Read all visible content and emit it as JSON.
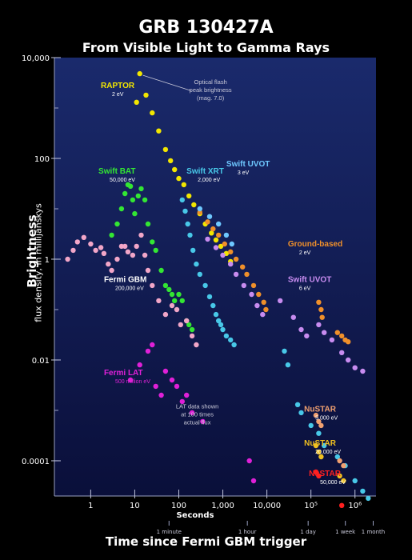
{
  "figure": {
    "title": "GRB 130427A",
    "subtitle": "From Visible Light to Gamma Rays",
    "ylabel_main": "Brightness",
    "ylabel_sub": "flux density, in millijanskys",
    "xlabel": "Time since Fermi GBM trigger",
    "x_unit_label": "Seconds",
    "bg_top": "#1a2a6c",
    "bg_bottom": "#0a0f3a"
  },
  "chart_data": {
    "type": "scatter",
    "x_scale": "log",
    "y_scale": "log",
    "xlim": [
      0.15,
      3000000
    ],
    "ylim": [
      2e-05,
      10000
    ],
    "x_ticks": [
      {
        "value": 1,
        "label": "1"
      },
      {
        "value": 10,
        "label": "10"
      },
      {
        "value": 100,
        "label": "100"
      },
      {
        "value": 1000,
        "label": "1,000"
      },
      {
        "value": 10000,
        "label": "10,000"
      },
      {
        "value": 100000,
        "label": "10⁵"
      },
      {
        "value": 1000000,
        "label": "10⁶"
      }
    ],
    "x_time_ticks": [
      {
        "value": 60,
        "label": "1 minute"
      },
      {
        "value": 3600,
        "label": "1 hour"
      },
      {
        "value": 86400,
        "label": "1 day"
      },
      {
        "value": 604800,
        "label": "1 week"
      },
      {
        "value": 2592000,
        "label": "1 month"
      }
    ],
    "y_ticks": [
      {
        "value": 10000,
        "label": "10,000"
      },
      {
        "value": 100,
        "label": "100"
      },
      {
        "value": 1,
        "label": "1"
      },
      {
        "value": 0.01,
        "label": "0.01"
      },
      {
        "value": 0.0001,
        "label": "0.0001"
      }
    ],
    "series": [
      {
        "name": "RAPTOR",
        "energy": "2 eV",
        "color": "#f2e600",
        "points": [
          [
            11,
            1300
          ],
          [
            13,
            4800
          ],
          [
            18,
            1800
          ],
          [
            25,
            800
          ],
          [
            35,
            350
          ],
          [
            50,
            150
          ],
          [
            65,
            90
          ],
          [
            80,
            60
          ],
          [
            100,
            40
          ],
          [
            130,
            30
          ],
          [
            170,
            18
          ],
          [
            220,
            12
          ],
          [
            300,
            8
          ],
          [
            400,
            5
          ],
          [
            550,
            3.3
          ],
          [
            700,
            2.4
          ],
          [
            900,
            1.8
          ],
          [
            1200,
            1.3
          ],
          [
            1500,
            0.9
          ]
        ]
      },
      {
        "name": "Ground-based",
        "energy": "2 eV",
        "color": "#f0902a",
        "points": [
          [
            300,
            8.5
          ],
          [
            450,
            5.5
          ],
          [
            600,
            4
          ],
          [
            800,
            3
          ],
          [
            1100,
            2
          ],
          [
            1500,
            1.4
          ],
          [
            2000,
            1
          ],
          [
            2800,
            0.7
          ],
          [
            3500,
            0.5
          ],
          [
            5000,
            0.3
          ],
          [
            6500,
            0.2
          ],
          [
            8500,
            0.14
          ],
          [
            9500,
            0.1
          ],
          [
            150000,
            0.14
          ],
          [
            170000,
            0.1
          ],
          [
            180000,
            0.07
          ],
          [
            400000,
            0.035
          ],
          [
            500000,
            0.03
          ],
          [
            600000,
            0.025
          ],
          [
            700000,
            0.023
          ]
        ]
      },
      {
        "name": "Swift UVOT",
        "energy": "3 eV",
        "color": "#6ec8ff",
        "points": [
          [
            300,
            10
          ],
          [
            500,
            7
          ],
          [
            800,
            5
          ],
          [
            1200,
            3
          ],
          [
            1600,
            2
          ]
        ]
      },
      {
        "name": "Swift UVOT",
        "energy": "6 eV",
        "color": "#c88cf0",
        "points": [
          [
            450,
            2.5
          ],
          [
            700,
            1.7
          ],
          [
            1000,
            1.2
          ],
          [
            1500,
            0.8
          ],
          [
            2000,
            0.5
          ],
          [
            3000,
            0.3
          ],
          [
            4500,
            0.2
          ],
          [
            6000,
            0.12
          ],
          [
            8000,
            0.08
          ],
          [
            20000,
            0.15
          ],
          [
            40000,
            0.07
          ],
          [
            60000,
            0.04
          ],
          [
            80000,
            0.03
          ],
          [
            150000,
            0.05
          ],
          [
            200000,
            0.035
          ],
          [
            300000,
            0.025
          ],
          [
            500000,
            0.014
          ],
          [
            700000,
            0.01
          ],
          [
            1000000,
            0.007
          ],
          [
            1500000,
            0.006
          ]
        ]
      },
      {
        "name": "Swift XRT",
        "energy": "2,000 eV",
        "color": "#48c8e8",
        "points": [
          [
            120,
            15
          ],
          [
            140,
            9
          ],
          [
            160,
            5
          ],
          [
            180,
            3
          ],
          [
            210,
            1.5
          ],
          [
            250,
            0.8
          ],
          [
            300,
            0.5
          ],
          [
            400,
            0.3
          ],
          [
            500,
            0.18
          ],
          [
            600,
            0.12
          ],
          [
            700,
            0.08
          ],
          [
            800,
            0.06
          ],
          [
            900,
            0.05
          ],
          [
            1000,
            0.04
          ],
          [
            1200,
            0.03
          ],
          [
            1500,
            0.025
          ],
          [
            1800,
            0.02
          ],
          [
            25000,
            0.015
          ],
          [
            30000,
            0.008
          ],
          [
            50000,
            0.0013
          ],
          [
            60000,
            0.0009
          ],
          [
            100000,
            0.0005
          ],
          [
            150000,
            0.00035
          ],
          [
            200000,
            0.0002
          ],
          [
            400000,
            0.00012
          ],
          [
            600000,
            8e-05
          ],
          [
            1000000,
            4e-05
          ],
          [
            1500000,
            2.5e-05
          ],
          [
            2000000,
            1.8e-05
          ]
        ]
      },
      {
        "name": "Swift BAT",
        "energy": "50,000 eV",
        "color": "#33e633",
        "points": [
          [
            3,
            3
          ],
          [
            4,
            5
          ],
          [
            5,
            10
          ],
          [
            6,
            20
          ],
          [
            7,
            30
          ],
          [
            8,
            28
          ],
          [
            9,
            15
          ],
          [
            10,
            8
          ],
          [
            12,
            18
          ],
          [
            14,
            25
          ],
          [
            17,
            15
          ],
          [
            20,
            5
          ],
          [
            25,
            2.2
          ],
          [
            30,
            1.5
          ],
          [
            40,
            0.6
          ],
          [
            50,
            0.3
          ],
          [
            60,
            0.25
          ],
          [
            70,
            0.2
          ],
          [
            80,
            0.15
          ],
          [
            100,
            0.2
          ],
          [
            120,
            0.15
          ],
          [
            150,
            0.06
          ],
          [
            170,
            0.05
          ],
          [
            200,
            0.04
          ]
        ]
      },
      {
        "name": "Fermi GBM",
        "energy": "200,000 eV",
        "color": "#f2a6c8",
        "points": [
          [
            0.3,
            1
          ],
          [
            0.4,
            1.5
          ],
          [
            0.5,
            2.2
          ],
          [
            0.7,
            2.7
          ],
          [
            1,
            2
          ],
          [
            1.3,
            1.5
          ],
          [
            1.7,
            1.7
          ],
          [
            2,
            1.3
          ],
          [
            2.5,
            0.8
          ],
          [
            3,
            0.6
          ],
          [
            4,
            1
          ],
          [
            5,
            1.8
          ],
          [
            6,
            1.8
          ],
          [
            7,
            1.4
          ],
          [
            9,
            1.2
          ],
          [
            11,
            1.8
          ],
          [
            14,
            3
          ],
          [
            17,
            1.2
          ],
          [
            20,
            0.6
          ],
          [
            25,
            0.3
          ],
          [
            35,
            0.15
          ],
          [
            50,
            0.08
          ],
          [
            70,
            0.12
          ],
          [
            90,
            0.1
          ],
          [
            110,
            0.05
          ],
          [
            150,
            0.06
          ],
          [
            200,
            0.03
          ],
          [
            250,
            0.02
          ]
        ]
      },
      {
        "name": "Fermi LAT",
        "energy": "500 million eV",
        "color": "#e020d8",
        "points": [
          [
            8,
            0.004
          ],
          [
            13,
            0.008
          ],
          [
            20,
            0.015
          ],
          [
            25,
            0.02
          ],
          [
            30,
            0.003
          ],
          [
            40,
            0.002
          ],
          [
            50,
            0.006
          ],
          [
            70,
            0.004
          ],
          [
            90,
            0.003
          ],
          [
            120,
            0.0015
          ],
          [
            150,
            0.002
          ],
          [
            200,
            0.0009
          ],
          [
            350,
            0.0006
          ],
          [
            4000,
            0.0001
          ],
          [
            5000,
            4e-05
          ]
        ]
      },
      {
        "name": "NuSTAR",
        "energy": "5,000 eV",
        "color": "#f0a070",
        "points": [
          [
            130000,
            0.0008
          ],
          [
            150000,
            0.0006
          ],
          [
            170000,
            0.0005
          ],
          [
            450000,
            0.0001
          ],
          [
            550000,
            8e-05
          ]
        ]
      },
      {
        "name": "NuSTAR",
        "energy": "20,000 eV",
        "color": "#f0c020",
        "points": [
          [
            130000,
            0.0002
          ],
          [
            150000,
            0.00015
          ],
          [
            170000,
            0.00012
          ],
          [
            450000,
            5e-05
          ],
          [
            550000,
            4e-05
          ]
        ]
      },
      {
        "name": "NuSTAR",
        "energy": "50,000 eV",
        "color": "#ff2020",
        "points": [
          [
            130000,
            6e-05
          ],
          [
            150000,
            5e-05
          ],
          [
            500000,
            1.3e-05
          ]
        ]
      }
    ],
    "annotations": [
      {
        "text": "RAPTOR",
        "sub": "2 eV",
        "color": "#f2e600",
        "x": 1.7,
        "y": 2500,
        "sub_color": "#ffffff"
      },
      {
        "text": "Swift BAT",
        "sub": "50,000 eV",
        "color": "#33e633",
        "x": 1.5,
        "y": 50,
        "sub_color": "#ffffff"
      },
      {
        "text": "Swift XRT",
        "sub": "2,000 eV",
        "color": "#48c8e8",
        "x": 150,
        "y": 50,
        "sub_color": "#ffffff"
      },
      {
        "text": "Swift UVOT",
        "sub": "3 eV",
        "color": "#6ec8ff",
        "x": 1200,
        "y": 70,
        "sub_color": "#ffffff"
      },
      {
        "text": "Ground-based",
        "sub": "2 eV",
        "color": "#f0902a",
        "x": 30000,
        "y": 1.8,
        "sub_color": "#ffffff"
      },
      {
        "text": "Fermi GBM",
        "sub": "200,000 eV",
        "color": "#ffffff",
        "x": 2.0,
        "y": 0.35,
        "sub_color": "#ffffff"
      },
      {
        "text": "Swift UVOT",
        "sub": "6 eV",
        "color": "#c88cf0",
        "x": 30000,
        "y": 0.35,
        "sub_color": "#ffffff"
      },
      {
        "text": "Fermi LAT",
        "sub": "500 million eV",
        "color": "#e020d8",
        "x": 2.0,
        "y": 0.005,
        "sub_color": "#e020d8"
      },
      {
        "text": "NuSTAR",
        "sub": "5,000 eV",
        "color": "#f0a070",
        "x": 70000,
        "y": 0.00095,
        "sub_color": "#ffffff"
      },
      {
        "text": "NuSTAR",
        "sub": "20,000 eV",
        "color": "#f0c020",
        "x": 70000,
        "y": 0.0002,
        "sub_color": "#ffffff"
      },
      {
        "text": "NuSTAR",
        "sub": "50,000 eV",
        "color": "#ff2020",
        "x": 90000,
        "y": 5e-05,
        "sub_color": "#ffffff"
      }
    ],
    "notes": [
      {
        "lines": [
          "Optical flash",
          "peak brightness",
          "(mag. 7.0)"
        ],
        "x": 80,
        "y": 3000,
        "color": "#c8c8d8"
      },
      {
        "lines": [
          "LAT data shown",
          "at 100 times",
          "actual flux"
        ],
        "x": 40,
        "y": 0.0011,
        "color": "#c8c8d8"
      }
    ]
  }
}
